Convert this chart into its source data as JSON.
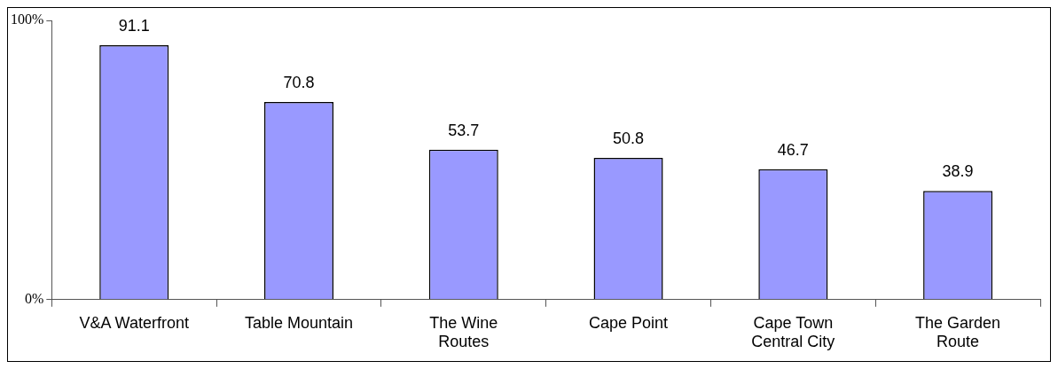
{
  "chart_data": {
    "type": "bar",
    "categories": [
      "V&A Waterfront",
      "Table Mountain",
      "The Wine Routes",
      "Cape Point",
      "Cape Town Central City",
      "The Garden Route"
    ],
    "values": [
      91.1,
      70.8,
      53.7,
      50.8,
      46.7,
      38.9
    ],
    "color": "#9999ff",
    "ylim": [
      0,
      100
    ],
    "yticks": [
      {
        "value": 0,
        "label": "0%"
      },
      {
        "value": 100,
        "label": "100%"
      }
    ],
    "data_labels": true
  }
}
